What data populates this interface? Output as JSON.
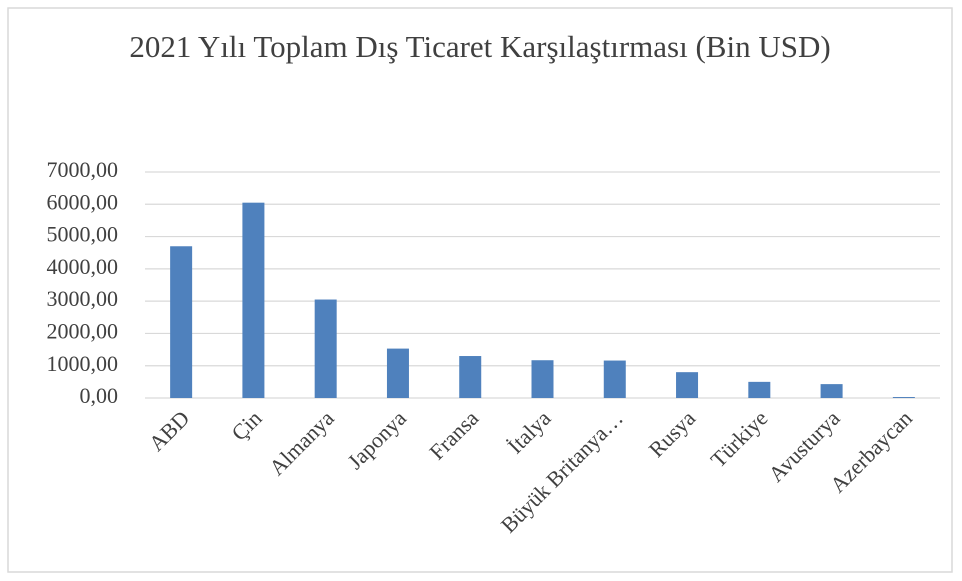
{
  "chart_data": {
    "type": "bar",
    "title": "2021 Yılı Toplam Dış Ticaret Karşılaştırması (Bin USD)",
    "categories": [
      "ABD",
      "Çin",
      "Almanya",
      "Japonya",
      "Fransa",
      "İtalya",
      "Büyük Britanya…",
      "Rusya",
      "Türkiye",
      "Avusturya",
      "Azerbaycan"
    ],
    "values": [
      4700,
      6050,
      3050,
      1530,
      1300,
      1170,
      1160,
      800,
      500,
      430,
      30
    ],
    "color": "#4f81bd",
    "ylim": [
      0,
      7000
    ],
    "yticks": [
      {
        "value": 0,
        "label": "0,00"
      },
      {
        "value": 1000,
        "label": "1000,00"
      },
      {
        "value": 2000,
        "label": "2000,00"
      },
      {
        "value": 3000,
        "label": "3000,00"
      },
      {
        "value": 4000,
        "label": "4000,00"
      },
      {
        "value": 5000,
        "label": "5000,00"
      },
      {
        "value": 6000,
        "label": "6000,00"
      },
      {
        "value": 7000,
        "label": "7000,00"
      }
    ],
    "grid": true
  }
}
